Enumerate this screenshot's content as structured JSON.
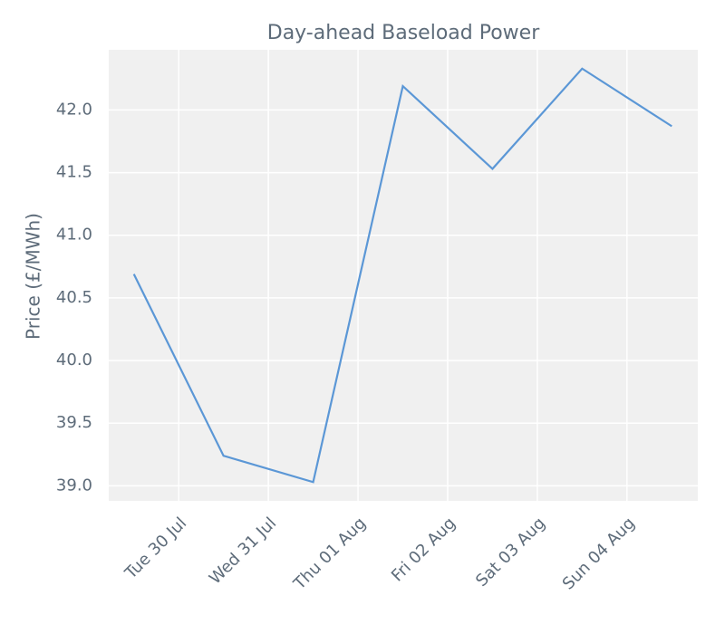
{
  "chart_data": {
    "type": "line",
    "title": "Day-ahead Baseload Power",
    "ylabel": "Price (£/MWh)",
    "x": [
      0.5,
      1.5,
      2.5,
      3.5,
      4.5,
      5.5,
      6.5
    ],
    "series": [
      {
        "name": "Price",
        "color": "#5b97d6",
        "values": [
          40.69,
          39.24,
          39.03,
          42.19,
          41.53,
          42.33,
          41.87
        ]
      }
    ],
    "xlim": [
      0.22,
      6.79
    ],
    "xticks": [
      {
        "value": 1,
        "label": "Tue 30 Jul"
      },
      {
        "value": 2,
        "label": "Wed 31 Jul"
      },
      {
        "value": 3,
        "label": "Thu 01 Aug"
      },
      {
        "value": 4,
        "label": "Fri 02 Aug"
      },
      {
        "value": 5,
        "label": "Sat 03 Aug"
      },
      {
        "value": 6,
        "label": "Sun 04 Aug"
      }
    ],
    "ylim": [
      38.88,
      42.48
    ],
    "yticks": [
      {
        "value": 39,
        "label": "39.0"
      },
      39.5,
      {
        "value": 40,
        "label": "40.0"
      },
      40.5,
      {
        "value": 41,
        "label": "41.0"
      },
      41.5,
      {
        "value": 42,
        "label": "42.0"
      }
    ],
    "grid": true
  }
}
